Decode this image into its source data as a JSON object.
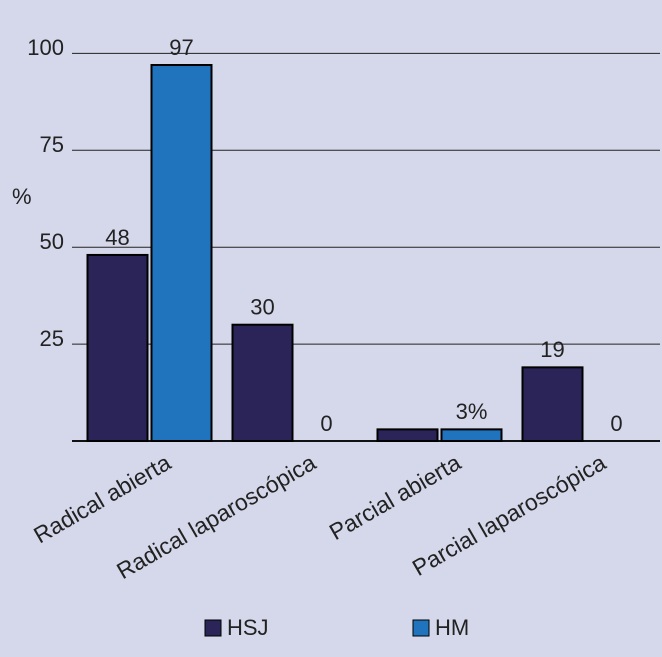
{
  "chart_data": {
    "type": "bar",
    "y_label": "%",
    "categories": [
      "Radical abierta",
      "Radical laparoscópica",
      "Parcial abierta",
      "Parcial laparoscópica"
    ],
    "series": [
      {
        "name": "HSJ",
        "color": "#2a2458",
        "values": [
          48,
          30,
          3,
          19
        ],
        "value_labels": [
          "48",
          "30",
          null,
          "19"
        ]
      },
      {
        "name": "HM",
        "color": "#1f74bd",
        "values": [
          97,
          0,
          3,
          0
        ],
        "value_labels": [
          "97",
          "0",
          "3%",
          "0"
        ]
      }
    ],
    "ylim": [
      0,
      105
    ],
    "yticks": [
      25,
      50,
      75,
      100
    ],
    "grid": true
  }
}
